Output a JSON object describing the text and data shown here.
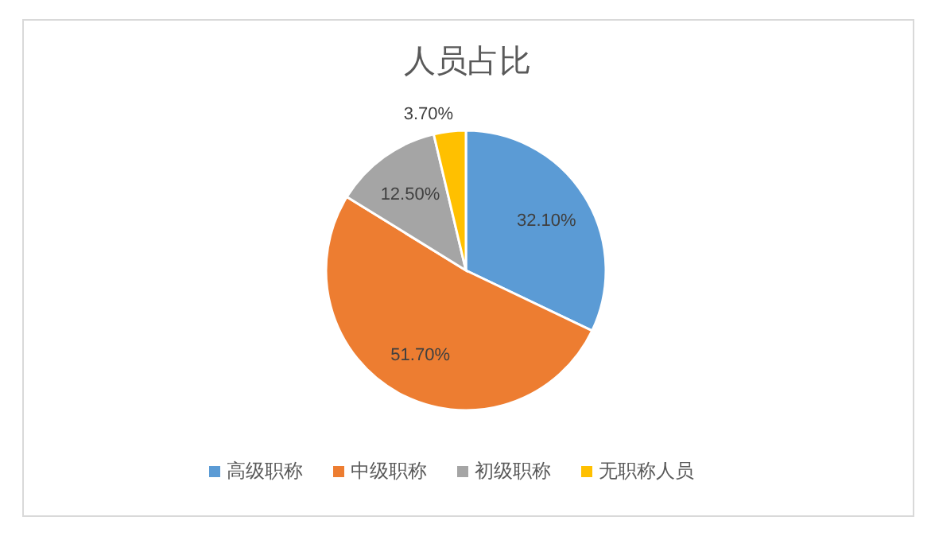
{
  "chart_data": {
    "type": "pie",
    "title": "人员占比",
    "categories": [
      "高级职称",
      "中级职称",
      "初级职称",
      "无职称人员"
    ],
    "values": [
      32.1,
      51.7,
      12.5,
      3.7
    ],
    "colors": [
      "#5b9bd5",
      "#ed7d31",
      "#a5a5a5",
      "#ffc000"
    ],
    "value_labels": [
      "32.10%",
      "51.70%",
      "12.50%",
      "3.70%"
    ],
    "legend": "bottom"
  }
}
